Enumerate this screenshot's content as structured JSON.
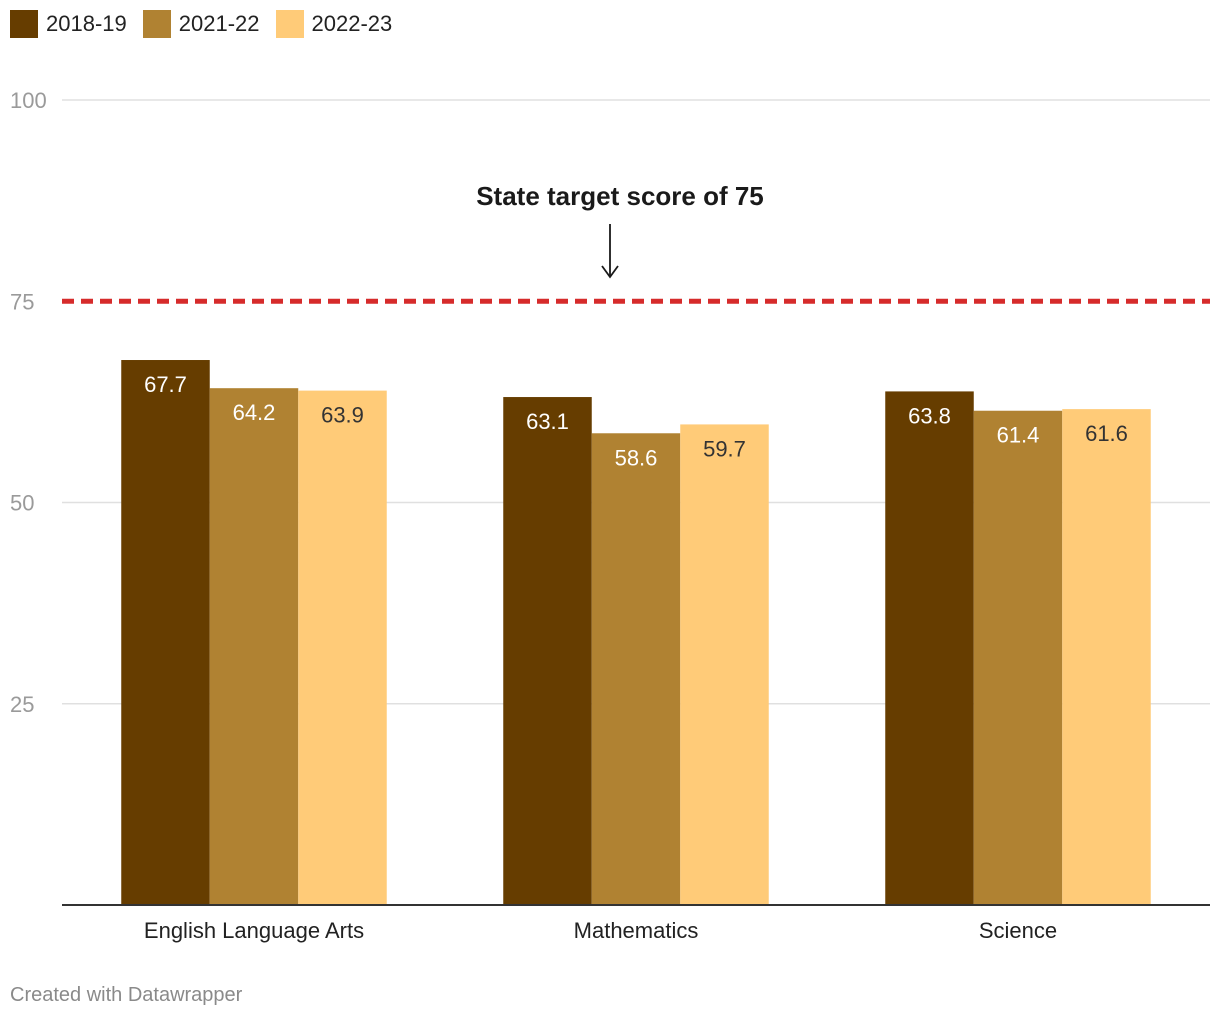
{
  "chart_data": {
    "type": "bar",
    "categories": [
      "English Language Arts",
      "Mathematics",
      "Science"
    ],
    "series": [
      {
        "name": "2018-19",
        "color": "#663d00",
        "label_color": "#ffffff",
        "values": [
          67.7,
          63.1,
          63.8
        ]
      },
      {
        "name": "2021-22",
        "color": "#b08232",
        "label_color": "#ffffff",
        "values": [
          64.2,
          58.6,
          61.4
        ]
      },
      {
        "name": "2022-23",
        "color": "#ffcb78",
        "label_color": "#333333",
        "values": [
          63.9,
          59.7,
          61.6
        ]
      }
    ],
    "ylim": [
      0,
      100
    ],
    "yticks": [
      25,
      50,
      75,
      100
    ],
    "grid": true,
    "legend_position": "top-left",
    "reference_line": {
      "value": 75,
      "color": "#d62b2b",
      "style": "dashed"
    },
    "annotation": {
      "text": "State target score of 75"
    }
  },
  "footer": {
    "credit": "Created with Datawrapper"
  }
}
